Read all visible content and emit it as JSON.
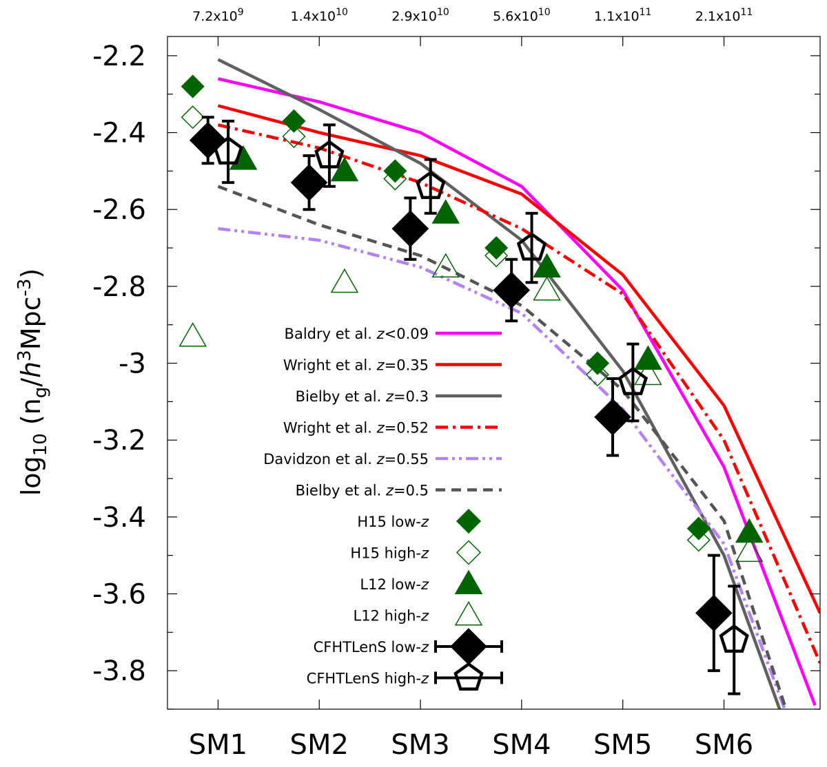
{
  "chart_data": {
    "type": "line",
    "ylabel_main": "log",
    "ylabel_sub1": "10",
    "ylabel_open": " (n",
    "ylabel_sub2": "g",
    "ylabel_slash": "/",
    "ylabel_h": "h",
    "ylabel_sup1": "3",
    "ylabel_mpc": "Mpc",
    "ylabel_sup2": "-3",
    "ylabel_close": ")",
    "ylim": [
      -3.9,
      -2.15
    ],
    "xlim": [
      0.5,
      6.95
    ],
    "y_ticks": [
      -2.2,
      -2.4,
      -2.6,
      -2.8,
      -3,
      -3.2,
      -3.4,
      -3.6,
      -3.8
    ],
    "y_tick_labels": [
      "-2.2",
      "-2.4",
      "-2.6",
      "-2.8",
      "-3",
      "-3.2",
      "-3.4",
      "-3.6",
      "-3.8"
    ],
    "categories": [
      "SM1",
      "SM2",
      "SM3",
      "SM4",
      "SM5",
      "SM6"
    ],
    "top_labels": [
      {
        "base": "7.2x10",
        "exp": "9"
      },
      {
        "base": "1.4x10",
        "exp": "10"
      },
      {
        "base": "2.9x10",
        "exp": "10"
      },
      {
        "base": "5.6x10",
        "exp": "10"
      },
      {
        "base": "1.1x10",
        "exp": "11"
      },
      {
        "base": "2.1x10",
        "exp": "11"
      }
    ],
    "lines": [
      {
        "name_pre": "Baldry et al. ",
        "name_z": "z",
        "name_post": "<0.09",
        "color": "#ff00ff",
        "dash": "solid",
        "x": [
          1,
          2,
          3,
          4,
          5,
          6,
          6.9
        ],
        "y": [
          -2.26,
          -2.32,
          -2.4,
          -2.54,
          -2.81,
          -3.27,
          -3.89
        ]
      },
      {
        "name_pre": "Wright et al. ",
        "name_z": "z",
        "name_post": "=0.35",
        "color": "#ff0000",
        "dash": "solid",
        "x": [
          1,
          2,
          3,
          4,
          5,
          6,
          6.95
        ],
        "y": [
          -2.33,
          -2.4,
          -2.46,
          -2.56,
          -2.77,
          -3.11,
          -3.65
        ]
      },
      {
        "name_pre": "Bielby et al. ",
        "name_z": "z",
        "name_post": "=0.3",
        "color": "#606060",
        "dash": "solid",
        "x": [
          1,
          2,
          3,
          4,
          5,
          6,
          6.55
        ],
        "y": [
          -2.21,
          -2.34,
          -2.48,
          -2.68,
          -3.02,
          -3.5,
          -3.9
        ]
      },
      {
        "name_pre": "Wright et al. ",
        "name_z": "z",
        "name_post": "=0.52",
        "color": "#ff0000",
        "dash": "dashdot",
        "x": [
          1,
          2,
          3,
          4,
          5,
          6,
          6.95
        ],
        "y": [
          -2.38,
          -2.44,
          -2.53,
          -2.65,
          -2.82,
          -3.2,
          -3.78
        ]
      },
      {
        "name_pre": "Davidzon et al. ",
        "name_z": "z",
        "name_post": "=0.55",
        "color": "#b482f5",
        "dash": "dashdotdot",
        "x": [
          1,
          2,
          3,
          4,
          5,
          6,
          6.6
        ],
        "y": [
          -2.65,
          -2.68,
          -2.75,
          -2.87,
          -3.12,
          -3.47,
          -3.9
        ]
      },
      {
        "name_pre": "Bielby et al.  ",
        "name_z": "z",
        "name_post": "=0.5",
        "color": "#555555",
        "dash": "dashed",
        "x": [
          1,
          2,
          3,
          4,
          5,
          6,
          6.6
        ],
        "y": [
          -2.54,
          -2.64,
          -2.72,
          -2.85,
          -3.07,
          -3.41,
          -3.89
        ]
      }
    ],
    "markers": [
      {
        "name_pre": "H15 low-",
        "name_z": "z",
        "name_post": "",
        "symbol": "diamond",
        "filled": true,
        "color": "#006400",
        "x": [
          0.75,
          1.75,
          2.75,
          3.75,
          4.75,
          5.75
        ],
        "y": [
          -2.28,
          -2.37,
          -2.5,
          -2.7,
          -3.0,
          -3.43
        ]
      },
      {
        "name_pre": "H15 high-",
        "name_z": "z",
        "name_post": "",
        "symbol": "diamond",
        "filled": false,
        "color": "#006400",
        "x": [
          0.75,
          1.75,
          2.75,
          3.75,
          4.75,
          5.75
        ],
        "y": [
          -2.36,
          -2.41,
          -2.52,
          -2.72,
          -3.03,
          -3.46
        ]
      },
      {
        "name_pre": "L12 low-",
        "name_z": "z",
        "name_post": "",
        "symbol": "triangle",
        "filled": true,
        "color": "#006400",
        "x": [
          1.25,
          2.25,
          3.25,
          4.25,
          5.25,
          6.25
        ],
        "y": [
          -2.47,
          -2.5,
          -2.61,
          -2.75,
          -2.99,
          -3.44
        ]
      },
      {
        "name_pre": "L12 high-",
        "name_z": "z",
        "name_post": "",
        "symbol": "triangle",
        "filled": false,
        "color": "#006400",
        "x": [
          0.75,
          2.25,
          3.25,
          4.25,
          5.25,
          6.25
        ],
        "y": [
          -2.93,
          -2.79,
          -2.75,
          -2.81,
          -3.03,
          -3.49
        ]
      },
      {
        "name_pre": "CFHTLenS low-",
        "name_z": "z",
        "name_post": "",
        "symbol": "diamond",
        "filled": true,
        "color": "#000000",
        "errorbar": true,
        "x": [
          0.9,
          1.9,
          2.9,
          3.9,
          4.9,
          5.9
        ],
        "y": [
          -2.42,
          -2.53,
          -2.65,
          -2.81,
          -3.14,
          -3.65
        ],
        "err": [
          0.06,
          0.07,
          0.08,
          0.08,
          0.1,
          0.15
        ]
      },
      {
        "name_pre": "CFHTLenS high-",
        "name_z": "z",
        "name_post": "",
        "symbol": "pentagon",
        "filled": false,
        "color": "#000000",
        "errorbar": true,
        "x": [
          1.1,
          2.1,
          3.1,
          4.1,
          5.1,
          6.1
        ],
        "y": [
          -2.45,
          -2.46,
          -2.54,
          -2.7,
          -3.05,
          -3.72
        ],
        "err": [
          0.08,
          0.08,
          0.07,
          0.09,
          0.1,
          0.14
        ]
      }
    ]
  }
}
